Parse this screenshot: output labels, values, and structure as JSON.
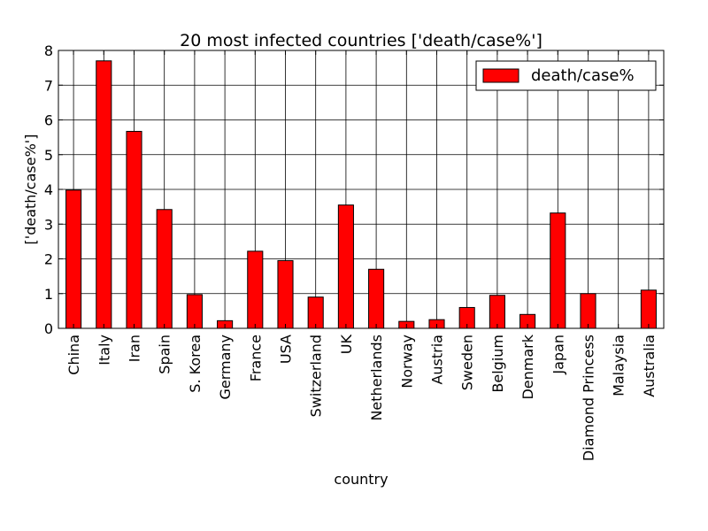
{
  "chart_data": {
    "type": "bar",
    "title": "20 most infected countries ['death/case%']",
    "xlabel": "country",
    "ylabel": "['death/case%']",
    "ylim": [
      0,
      8
    ],
    "yticks": [
      0,
      1,
      2,
      3,
      4,
      5,
      6,
      7,
      8
    ],
    "grid": true,
    "legend_position": "top-right",
    "categories": [
      "China",
      "Italy",
      "Iran",
      "Spain",
      "S. Korea",
      "Germany",
      "France",
      "USA",
      "Switzerland",
      "UK",
      "Netherlands",
      "Norway",
      "Austria",
      "Sweden",
      "Belgium",
      "Denmark",
      "Japan",
      "Diamond Princess",
      "Malaysia",
      "Australia"
    ],
    "series": [
      {
        "name": "death/case%",
        "color": "#ff0000",
        "values": [
          3.98,
          7.7,
          5.67,
          3.42,
          0.97,
          0.22,
          2.22,
          1.95,
          0.9,
          3.55,
          1.7,
          0.2,
          0.25,
          0.6,
          0.95,
          0.4,
          3.32,
          1.0,
          0.0,
          1.1
        ]
      }
    ]
  }
}
